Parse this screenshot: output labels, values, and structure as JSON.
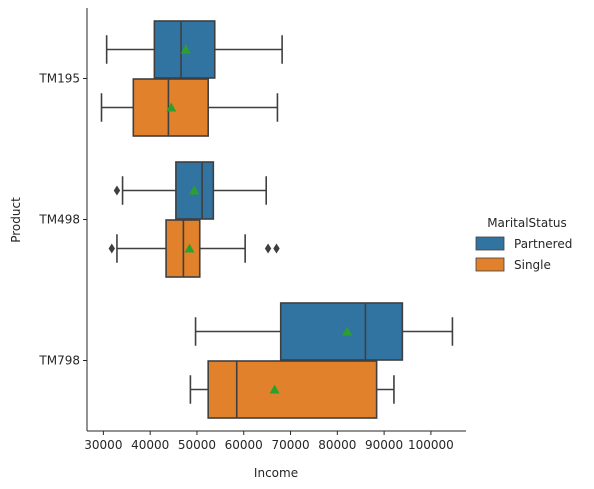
{
  "chart_data": {
    "type": "boxplot",
    "orientation": "horizontal",
    "xlabel": "Income",
    "ylabel": "Product",
    "xlim": [
      26500,
      107500
    ],
    "x_ticks": [
      30000,
      40000,
      50000,
      60000,
      70000,
      80000,
      90000,
      100000
    ],
    "x_tick_labels": [
      "30000",
      "40000",
      "50000",
      "60000",
      "70000",
      "80000",
      "90000",
      "100000"
    ],
    "categories": [
      "TM195",
      "TM498",
      "TM798"
    ],
    "grid": false,
    "legend": {
      "title": "MaritalStatus",
      "placement": "center-right",
      "entries": [
        "Partnered",
        "Single"
      ]
    },
    "series": [
      {
        "name": "Partnered",
        "color": "#3274a1",
        "boxes": [
          {
            "category": "TM195",
            "whislo": 30700,
            "q1": 40900,
            "median": 46600,
            "q3": 53800,
            "whishi": 68200,
            "mean": 47600,
            "fliers": []
          },
          {
            "category": "TM498",
            "whislo": 34100,
            "q1": 45500,
            "median": 51100,
            "q3": 53500,
            "whishi": 64800,
            "mean": 49400,
            "fliers": [
              32900
            ]
          },
          {
            "category": "TM798",
            "whislo": 49700,
            "q1": 67900,
            "median": 86000,
            "q3": 93900,
            "whishi": 104600,
            "mean": 82100,
            "fliers": []
          }
        ]
      },
      {
        "name": "Single",
        "color": "#e1812c",
        "boxes": [
          {
            "category": "TM195",
            "whislo": 29600,
            "q1": 36400,
            "median": 43900,
            "q3": 52400,
            "whishi": 67200,
            "mean": 44500,
            "fliers": []
          },
          {
            "category": "TM498",
            "whislo": 32900,
            "q1": 43400,
            "median": 47100,
            "q3": 50600,
            "whishi": 60300,
            "mean": 48400,
            "fliers": [
              31800,
              65200,
              67000
            ]
          },
          {
            "category": "TM798",
            "whislo": 48600,
            "q1": 52400,
            "median": 58500,
            "q3": 88400,
            "whishi": 92100,
            "mean": 66600,
            "fliers": []
          }
        ]
      }
    ]
  }
}
